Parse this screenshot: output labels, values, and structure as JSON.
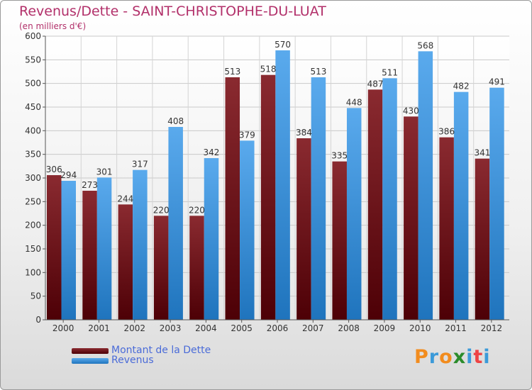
{
  "chart_data": {
    "type": "bar",
    "title": "Revenus/Dette - SAINT-CHRISTOPHE-DU-LUAT",
    "subtitle": "(en milliers d'€)",
    "xlabel": "",
    "ylabel": "",
    "ylim": [
      0,
      600
    ],
    "yticks": [
      "0",
      "50",
      "100",
      "150",
      "200",
      "250",
      "300",
      "350",
      "400",
      "450",
      "500",
      "550",
      "600"
    ],
    "grid": true,
    "categories": [
      "2000",
      "2001",
      "2002",
      "2003",
      "2004",
      "2005",
      "2006",
      "2007",
      "2008",
      "2009",
      "2010",
      "2011",
      "2012"
    ],
    "series": [
      {
        "name": "Montant de la Dette",
        "values": [
          306,
          273,
          244,
          220,
          220,
          513,
          518,
          384,
          335,
          487,
          430,
          386,
          341
        ],
        "labels": [
          "306",
          "273",
          "244",
          "220",
          "220",
          "513",
          "518",
          "384",
          "335",
          "487",
          "430",
          "386",
          "341"
        ]
      },
      {
        "name": "Revenus",
        "values": [
          294,
          301,
          317,
          408,
          342,
          379,
          570,
          513,
          448,
          511,
          568,
          482,
          491
        ],
        "labels": [
          "294",
          "301",
          "317",
          "408",
          "342",
          "379",
          "570",
          "513",
          "448",
          "511",
          "568",
          "482",
          "491"
        ]
      }
    ]
  },
  "colors": {
    "debt_dark": "#4d0006",
    "debt_light": "#8a2a30",
    "revenue_dark": "#1f74bd",
    "revenue_light": "#5aaaed",
    "title": "#b2306a",
    "legend_text": "#4a6bd8"
  },
  "legend": {
    "debt_label": "Montant de la Dette",
    "revenue_label": "Revenus"
  },
  "logo": {
    "letters": [
      "P",
      "r",
      "o",
      "x",
      "i",
      "t",
      "i"
    ],
    "colors": [
      "#f28c1e",
      "#3b9ad9",
      "#f28c1e",
      "#2b8c2b",
      "#3b9ad9",
      "#e44",
      "#3b9ad9"
    ]
  }
}
